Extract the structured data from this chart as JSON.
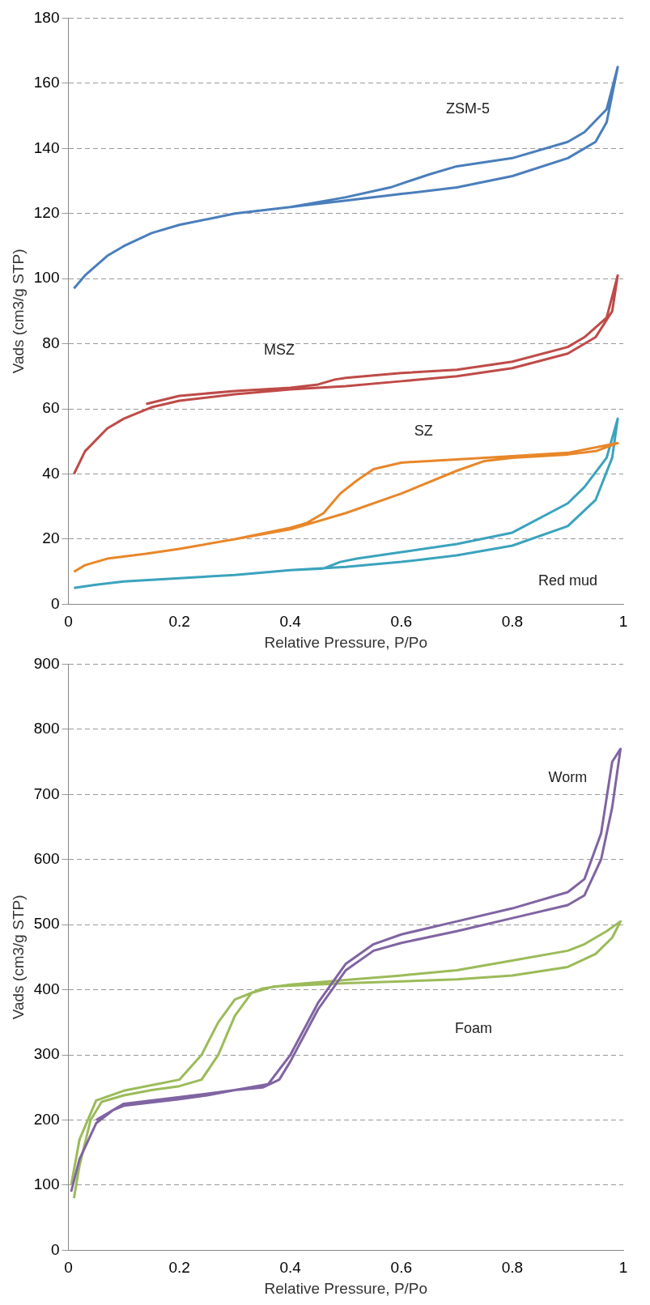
{
  "chart_data": [
    {
      "type": "line",
      "xlabel": "Relative Pressure, P/Po",
      "ylabel": "Vads (cm3/g STP)",
      "xlim": [
        0,
        1
      ],
      "xticks": [
        0,
        0.2,
        0.4,
        0.6,
        0.8,
        1
      ],
      "ylim": [
        0,
        180
      ],
      "yticks": [
        0,
        20,
        40,
        60,
        80,
        100,
        120,
        140,
        160,
        180
      ],
      "grid": "y",
      "legend": false,
      "marker": "none",
      "line_style": "solid",
      "series": [
        {
          "name": "ZSM-5",
          "color": "#4a7ebb",
          "x": [
            0.01,
            0.03,
            0.07,
            0.1,
            0.15,
            0.2,
            0.3,
            0.4,
            0.5,
            0.6,
            0.7,
            0.8,
            0.9,
            0.95,
            0.97,
            0.99,
            0.97,
            0.93,
            0.9,
            0.8,
            0.7,
            0.65,
            0.58,
            0.5,
            0.4,
            0.35
          ],
          "values": [
            97,
            101,
            107,
            110,
            114,
            116.5,
            120,
            122,
            124,
            126,
            128,
            131.5,
            137,
            142,
            148,
            165,
            152,
            145,
            142,
            137,
            134.5,
            132,
            128,
            125,
            122,
            121
          ]
        },
        {
          "name": "MSZ",
          "color": "#be4b48",
          "x": [
            0.01,
            0.03,
            0.07,
            0.1,
            0.15,
            0.2,
            0.3,
            0.4,
            0.5,
            0.6,
            0.7,
            0.8,
            0.9,
            0.95,
            0.98,
            0.99,
            0.97,
            0.93,
            0.9,
            0.8,
            0.7,
            0.6,
            0.5,
            0.48,
            0.45,
            0.4,
            0.3,
            0.2,
            0.14
          ],
          "values": [
            40,
            47,
            54,
            57,
            60.5,
            62.5,
            64.5,
            66,
            67,
            68.5,
            70,
            72.5,
            77,
            82,
            90,
            101,
            88,
            82,
            79,
            74.5,
            72,
            71,
            69.5,
            69,
            67.5,
            66.5,
            65.5,
            64,
            61.5
          ]
        },
        {
          "name": "SZ",
          "color": "#e8872a",
          "x": [
            0.01,
            0.03,
            0.07,
            0.14,
            0.2,
            0.3,
            0.4,
            0.5,
            0.6,
            0.7,
            0.75,
            0.8,
            0.9,
            0.95,
            0.99,
            0.9,
            0.8,
            0.7,
            0.6,
            0.55,
            0.52,
            0.49,
            0.46,
            0.43,
            0.4,
            0.3,
            0.2,
            0.14
          ],
          "values": [
            10,
            12,
            14,
            15.5,
            17,
            20,
            23,
            28,
            34,
            41,
            44,
            45,
            46,
            47,
            49.5,
            46.5,
            45.5,
            44.5,
            43.5,
            41.5,
            38,
            34,
            28,
            25,
            23.5,
            20,
            17,
            15.5
          ]
        },
        {
          "name": "Red mud",
          "color": "#3ba3bd",
          "x": [
            0.01,
            0.05,
            0.1,
            0.2,
            0.3,
            0.4,
            0.5,
            0.6,
            0.7,
            0.8,
            0.9,
            0.95,
            0.98,
            0.99,
            0.97,
            0.93,
            0.9,
            0.8,
            0.7,
            0.6,
            0.52,
            0.49,
            0.46,
            0.4
          ],
          "values": [
            5,
            6,
            7,
            8,
            9,
            10.5,
            11.5,
            13,
            15,
            18,
            24,
            32,
            45,
            57,
            45,
            36,
            31,
            22,
            18.5,
            16,
            14,
            13,
            11,
            10.5
          ]
        }
      ]
    },
    {
      "type": "line",
      "xlabel": "Relative Pressure, P/Po",
      "ylabel": "Vads (cm3/g STP)",
      "xlim": [
        0,
        1
      ],
      "xticks": [
        0,
        0.2,
        0.4,
        0.6,
        0.8,
        1
      ],
      "ylim": [
        0,
        900
      ],
      "yticks": [
        0,
        100,
        200,
        300,
        400,
        500,
        600,
        700,
        800,
        900
      ],
      "grid": "y",
      "legend": false,
      "marker": "none",
      "line_style": "solid",
      "series": [
        {
          "name": "Worm",
          "color": "#8064a2",
          "x": [
            0.005,
            0.02,
            0.05,
            0.08,
            0.1,
            0.15,
            0.2,
            0.25,
            0.3,
            0.35,
            0.38,
            0.4,
            0.45,
            0.5,
            0.55,
            0.6,
            0.7,
            0.8,
            0.9,
            0.93,
            0.96,
            0.98,
            0.995,
            0.98,
            0.96,
            0.93,
            0.9,
            0.8,
            0.7,
            0.6,
            0.55,
            0.5,
            0.45,
            0.4,
            0.36,
            0.3,
            0.2,
            0.1,
            0.05
          ],
          "values": [
            90,
            140,
            195,
            215,
            222,
            227,
            232,
            238,
            246,
            250,
            262,
            290,
            370,
            430,
            460,
            472,
            490,
            510,
            530,
            545,
            600,
            680,
            770,
            750,
            640,
            570,
            550,
            525,
            505,
            485,
            470,
            440,
            380,
            300,
            255,
            246,
            235,
            225,
            200
          ]
        },
        {
          "name": "Foam",
          "color": "#9bbb59",
          "x": [
            0.01,
            0.02,
            0.04,
            0.06,
            0.1,
            0.15,
            0.2,
            0.24,
            0.27,
            0.3,
            0.33,
            0.37,
            0.5,
            0.6,
            0.7,
            0.8,
            0.9,
            0.95,
            0.98,
            0.995,
            0.97,
            0.93,
            0.9,
            0.8,
            0.7,
            0.6,
            0.5,
            0.4,
            0.35,
            0.3,
            0.27,
            0.24,
            0.2,
            0.1,
            0.05,
            0.02,
            0.005
          ],
          "values": [
            80,
            130,
            200,
            228,
            238,
            246,
            252,
            262,
            300,
            360,
            395,
            405,
            410,
            413,
            416,
            422,
            435,
            455,
            480,
            505,
            490,
            470,
            460,
            445,
            430,
            422,
            415,
            408,
            402,
            385,
            350,
            300,
            262,
            245,
            230,
            170,
            100
          ]
        }
      ]
    }
  ]
}
